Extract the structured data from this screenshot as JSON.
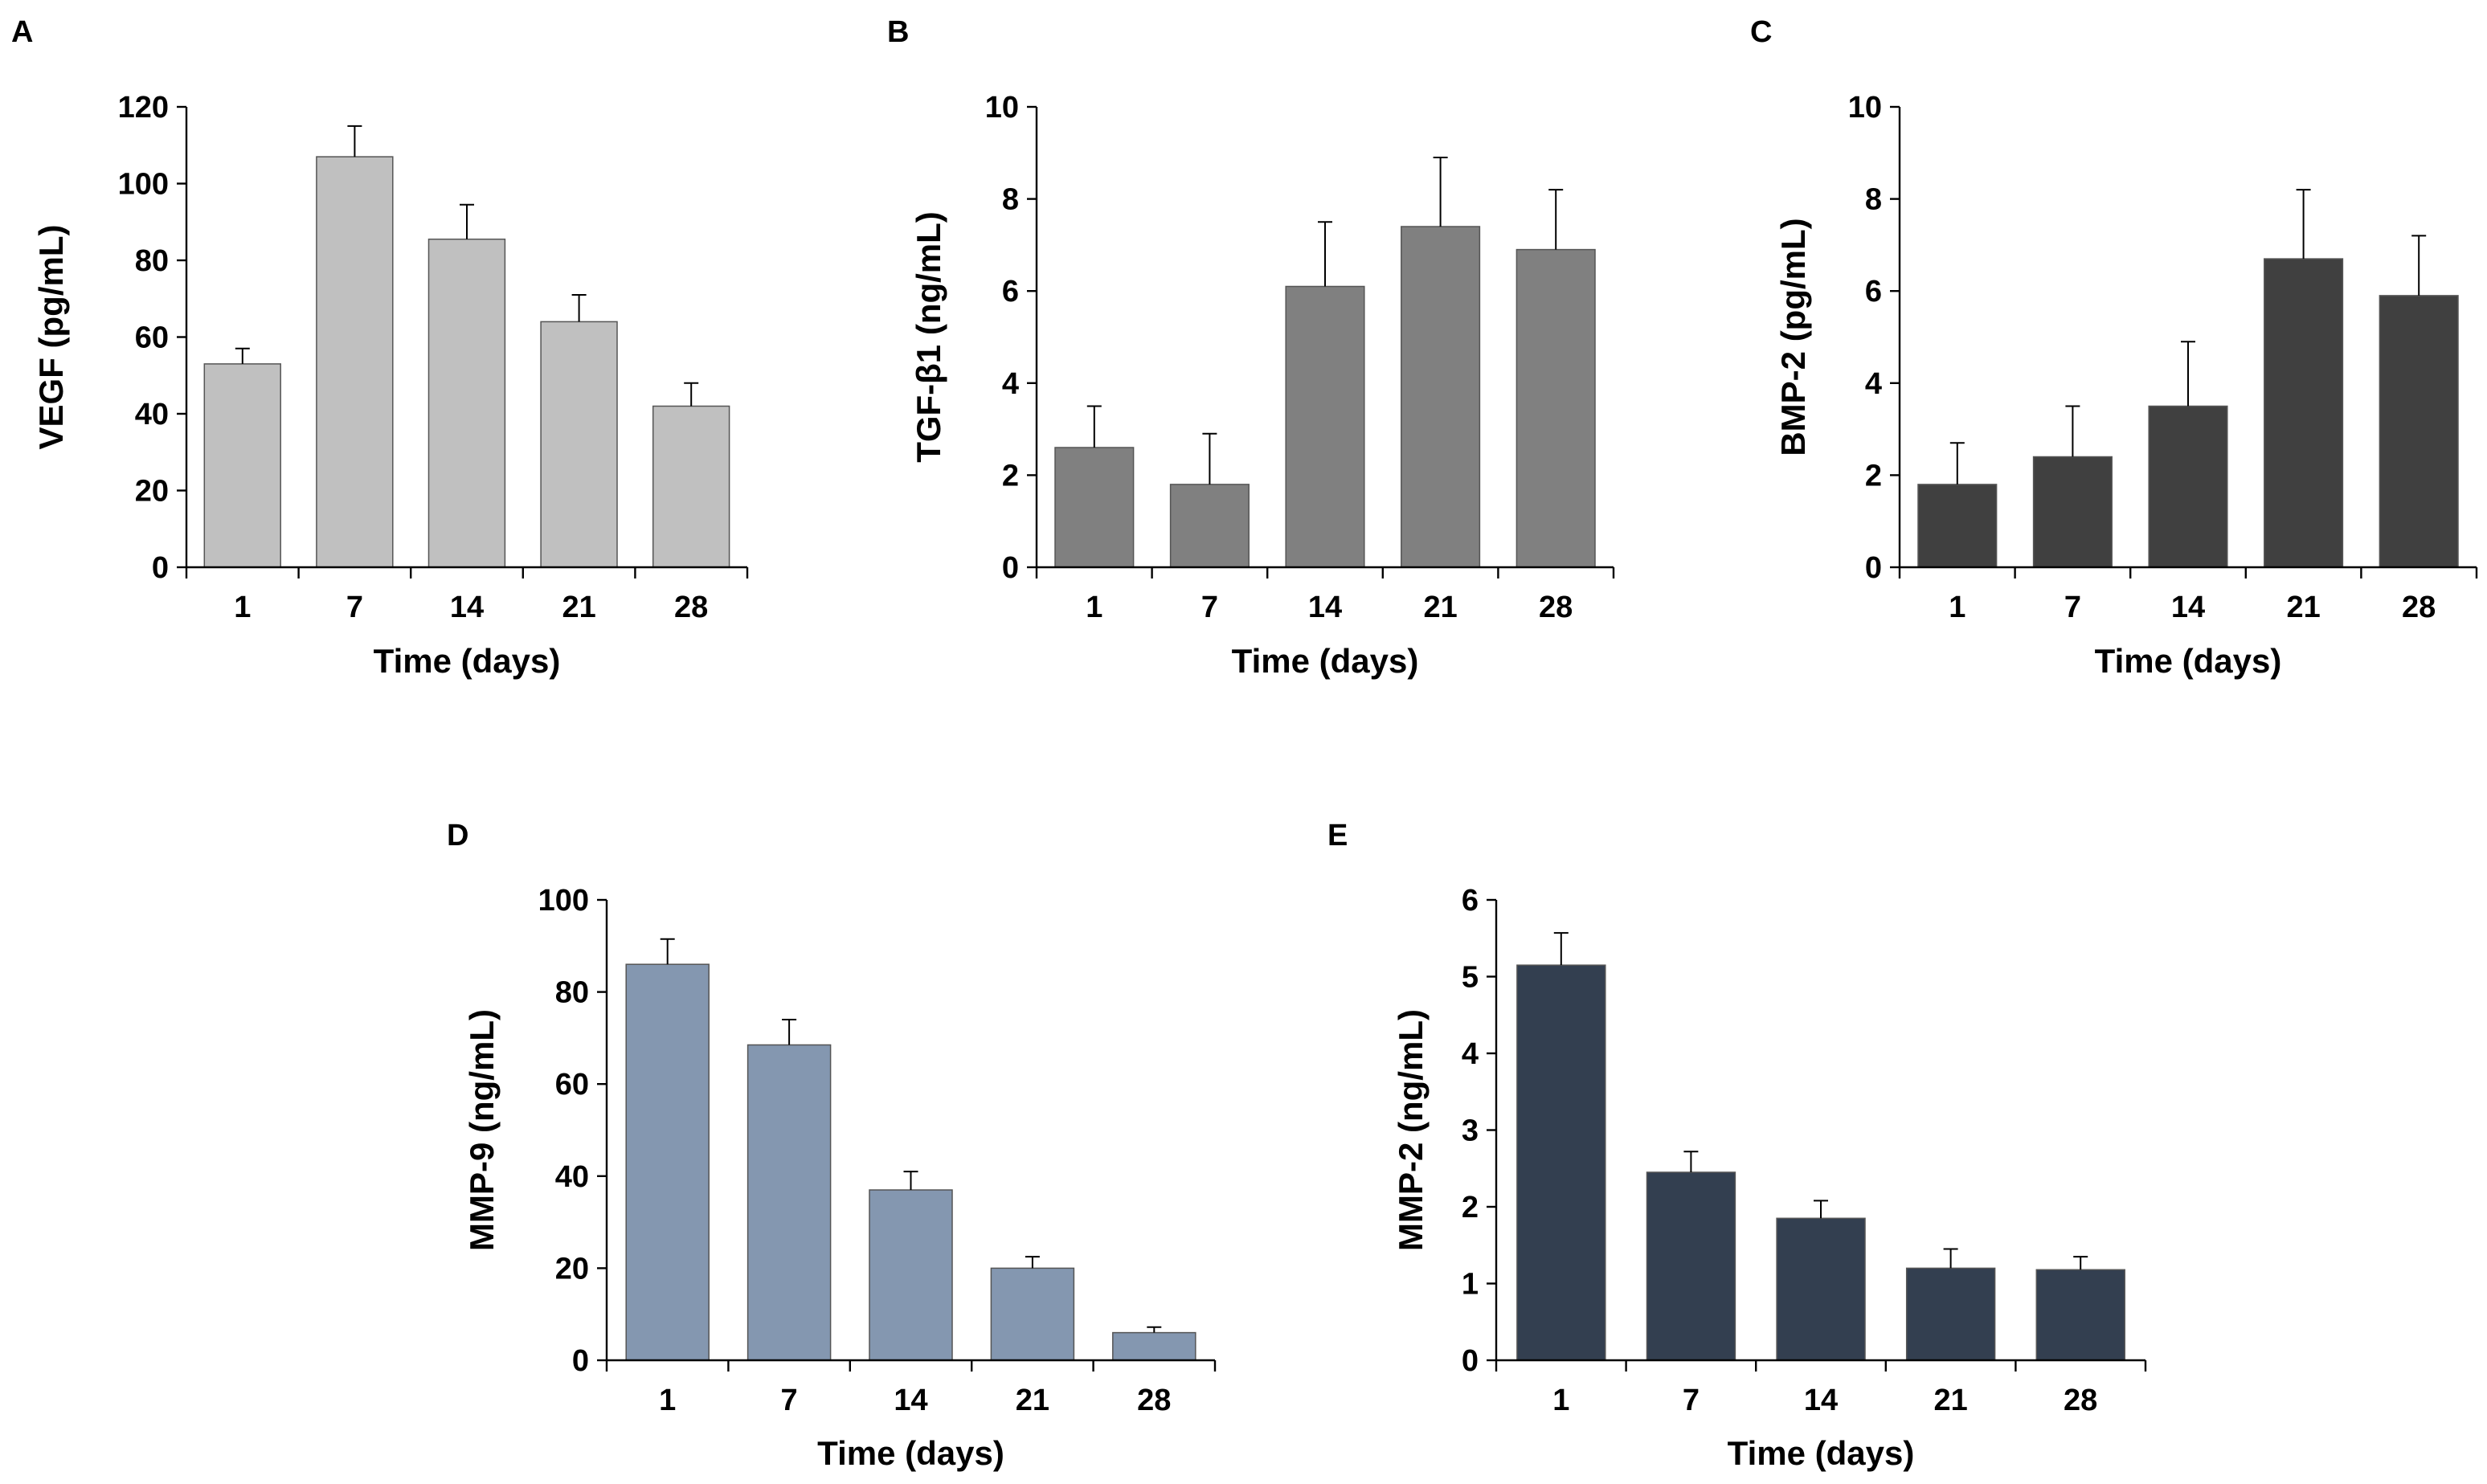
{
  "figure": {
    "background": "#ffffff"
  },
  "chart_data": [
    {
      "type": "bar",
      "panel": "A",
      "categories": [
        "1",
        "7",
        "14",
        "21",
        "28"
      ],
      "values": [
        53,
        107,
        85.5,
        64,
        42
      ],
      "errors": [
        4,
        8,
        9,
        7,
        6
      ],
      "xlabel": "Time (days)",
      "ylabel": "VEGF (pg/mL)",
      "ylim": [
        0,
        120
      ],
      "yticks": [
        0,
        20,
        40,
        60,
        80,
        100,
        120
      ],
      "color": "#c0c0c0",
      "grid": false
    },
    {
      "type": "bar",
      "panel": "B",
      "categories": [
        "1",
        "7",
        "14",
        "21",
        "28"
      ],
      "values": [
        2.6,
        1.8,
        6.1,
        7.4,
        6.9
      ],
      "errors": [
        0.9,
        1.1,
        1.4,
        1.5,
        1.3
      ],
      "xlabel": "Time (days)",
      "ylabel": "TGF-β1 (ng/mL)",
      "ylim": [
        0,
        10
      ],
      "yticks": [
        0,
        2,
        4,
        6,
        8,
        10
      ],
      "color": "#808080",
      "grid": false
    },
    {
      "type": "bar",
      "panel": "C",
      "categories": [
        "1",
        "7",
        "14",
        "21",
        "28"
      ],
      "values": [
        1.8,
        2.4,
        3.5,
        6.7,
        5.9
      ],
      "errors": [
        0.9,
        1.1,
        1.4,
        1.5,
        1.3
      ],
      "xlabel": "Time (days)",
      "ylabel": "BMP-2 (pg/mL)",
      "ylim": [
        0,
        10
      ],
      "yticks": [
        0,
        2,
        4,
        6,
        8,
        10
      ],
      "color": "#404040",
      "grid": false
    },
    {
      "type": "bar",
      "panel": "D",
      "categories": [
        "1",
        "7",
        "14",
        "21",
        "28"
      ],
      "values": [
        86,
        68.5,
        37,
        20,
        6
      ],
      "errors": [
        5.5,
        5.5,
        4,
        2.5,
        1.2
      ],
      "xlabel": "Time (days)",
      "ylabel": "MMP-9 (ng/mL)",
      "ylim": [
        0,
        100
      ],
      "yticks": [
        0,
        20,
        40,
        60,
        80,
        100
      ],
      "color": "#8497b0",
      "grid": false
    },
    {
      "type": "bar",
      "panel": "E",
      "categories": [
        "1",
        "7",
        "14",
        "21",
        "28"
      ],
      "values": [
        5.15,
        2.45,
        1.85,
        1.2,
        1.18
      ],
      "errors": [
        0.42,
        0.27,
        0.23,
        0.25,
        0.17
      ],
      "xlabel": "Time (days)",
      "ylabel": "MMP-2 (ng/mL)",
      "ylim": [
        0,
        6
      ],
      "yticks": [
        0,
        1,
        2,
        3,
        4,
        5,
        6
      ],
      "color": "#333f50",
      "grid": false
    }
  ]
}
